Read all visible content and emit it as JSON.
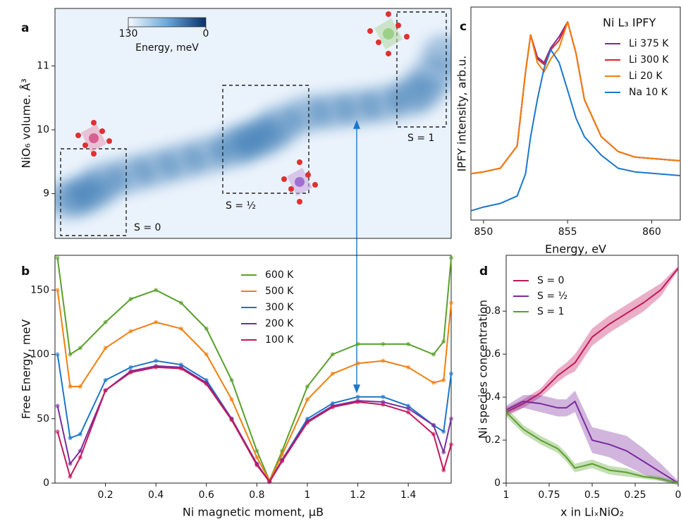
{
  "chart_data": [
    {
      "type": "density",
      "label": "a",
      "ylabel": "NiO₆ volume. Å³",
      "xlim": [
        0,
        1.57
      ],
      "ylim": [
        8.3,
        11.9
      ],
      "yticks": [
        9,
        10,
        11
      ],
      "color": "#1f66a8",
      "x": [
        0.05,
        0.1,
        0.15,
        0.2,
        0.3,
        0.4,
        0.5,
        0.6,
        0.7,
        0.75,
        0.8,
        0.85,
        0.9,
        1.0,
        1.1,
        1.2,
        1.3,
        1.4,
        1.45,
        1.5,
        1.55
      ],
      "values": [
        8.9,
        8.95,
        9.05,
        9.2,
        9.3,
        9.4,
        9.5,
        9.6,
        9.7,
        9.8,
        9.85,
        9.95,
        10.1,
        10.25,
        10.3,
        10.35,
        10.4,
        10.5,
        10.6,
        10.85,
        11.2
      ],
      "colorbar": {
        "label": "Energy, meV",
        "ticks": [
          130,
          0
        ],
        "clim": [
          130,
          0
        ]
      },
      "annotations": [
        "S = 0",
        "S = ½",
        "S = 1"
      ]
    },
    {
      "type": "line",
      "label": "b",
      "xlabel": "Ni magnetic moment, μB",
      "ylabel": "Free Energy, meV",
      "xlim": [
        0,
        1.57
      ],
      "ylim": [
        0,
        177
      ],
      "xticks": [
        0.2,
        0.4,
        0.6,
        0.8,
        1.0,
        1.2,
        1.4
      ],
      "yticks": [
        0,
        50,
        100,
        150
      ],
      "x": [
        0.01,
        0.06,
        0.1,
        0.2,
        0.3,
        0.4,
        0.5,
        0.6,
        0.7,
        0.8,
        0.85,
        0.9,
        1.0,
        1.1,
        1.2,
        1.3,
        1.4,
        1.5,
        1.54,
        1.57
      ],
      "series": [
        {
          "name": "600 K",
          "color": "#5aa02c",
          "values": [
            175,
            100,
            105,
            125,
            143,
            150,
            140,
            120,
            80,
            25,
            2,
            25,
            75,
            100,
            108,
            108,
            108,
            100,
            110,
            175
          ]
        },
        {
          "name": "500 K",
          "color": "#f07f0e",
          "values": [
            150,
            75,
            75,
            105,
            118,
            125,
            120,
            100,
            65,
            20,
            2,
            22,
            65,
            85,
            93,
            95,
            90,
            78,
            80,
            140
          ]
        },
        {
          "name": "300 K",
          "color": "#1c77c9",
          "values": [
            100,
            35,
            38,
            80,
            90,
            95,
            92,
            80,
            50,
            15,
            1,
            18,
            50,
            62,
            67,
            67,
            60,
            45,
            40,
            85
          ]
        },
        {
          "name": "200 K",
          "color": "#7b2b9e",
          "values": [
            60,
            15,
            25,
            72,
            87,
            91,
            90,
            78,
            50,
            15,
            1,
            18,
            48,
            60,
            64,
            63,
            58,
            45,
            24,
            50
          ]
        },
        {
          "name": "100 K",
          "color": "#c2185b",
          "values": [
            40,
            5,
            20,
            72,
            86,
            90,
            89,
            77,
            49,
            14,
            1,
            17,
            47,
            59,
            63,
            61,
            55,
            38,
            10,
            30
          ]
        }
      ]
    },
    {
      "type": "line",
      "label": "c",
      "xlabel": "Energy, eV",
      "ylabel": "IPFY intensity, arb.u.",
      "legend_title": "Ni L₃ IPFY",
      "xlim": [
        849.25,
        861.7
      ],
      "ylim": [
        0,
        1.15
      ],
      "xticks": [
        850,
        855,
        860
      ],
      "x": [
        849.25,
        850,
        851,
        852,
        852.5,
        852.8,
        853.2,
        853.6,
        854,
        854.5,
        855,
        855.5,
        856,
        857,
        858,
        859,
        861.7
      ],
      "series": [
        {
          "name": "Li 375 K",
          "color": "#7b2b9e",
          "values": [
            0.25,
            0.26,
            0.28,
            0.4,
            0.8,
            1.0,
            0.88,
            0.85,
            0.93,
            0.99,
            1.07,
            0.9,
            0.65,
            0.45,
            0.37,
            0.34,
            0.32
          ]
        },
        {
          "name": "Li 300 K",
          "color": "#d62728",
          "values": [
            0.25,
            0.26,
            0.28,
            0.4,
            0.8,
            1.0,
            0.87,
            0.84,
            0.92,
            0.97,
            1.07,
            0.9,
            0.65,
            0.45,
            0.37,
            0.34,
            0.32
          ]
        },
        {
          "name": "Li   20 K",
          "color": "#f07f0e",
          "values": [
            0.25,
            0.26,
            0.28,
            0.4,
            0.8,
            1.0,
            0.85,
            0.8,
            0.87,
            0.93,
            1.07,
            0.9,
            0.65,
            0.45,
            0.37,
            0.34,
            0.32
          ]
        },
        {
          "name": "Na 10 K",
          "color": "#1c77c9",
          "values": [
            0.05,
            0.07,
            0.09,
            0.13,
            0.25,
            0.45,
            0.65,
            0.82,
            0.92,
            0.85,
            0.7,
            0.55,
            0.45,
            0.35,
            0.28,
            0.26,
            0.24
          ]
        }
      ]
    },
    {
      "type": "band",
      "label": "d",
      "xlabel": "x in LiₓNiO₂",
      "ylabel": "Ni species concentration",
      "xlim": [
        1,
        0
      ],
      "ylim": [
        0,
        1.06
      ],
      "xticks": [
        1,
        0.75,
        0.5,
        0.25,
        0
      ],
      "yticks": [
        0,
        0.2,
        0.4,
        0.6,
        0.8
      ],
      "x": [
        1,
        0.9,
        0.8,
        0.7,
        0.65,
        0.6,
        0.5,
        0.4,
        0.3,
        0.2,
        0.1,
        0
      ],
      "series": [
        {
          "name": "S = 0",
          "color": "#c2185b",
          "values": [
            0.33,
            0.37,
            0.42,
            0.5,
            0.53,
            0.56,
            0.68,
            0.74,
            0.79,
            0.84,
            0.9,
            1.0
          ],
          "errors": [
            0.02,
            0.02,
            0.02,
            0.03,
            0.03,
            0.04,
            0.04,
            0.04,
            0.04,
            0.04,
            0.03,
            0.01
          ]
        },
        {
          "name": "S = ½",
          "color": "#7b2b9e",
          "values": [
            0.34,
            0.38,
            0.37,
            0.35,
            0.35,
            0.38,
            0.2,
            0.18,
            0.15,
            0.1,
            0.05,
            0.0
          ],
          "errors": [
            0.02,
            0.03,
            0.04,
            0.04,
            0.04,
            0.05,
            0.06,
            0.06,
            0.07,
            0.06,
            0.04,
            0.01
          ]
        },
        {
          "name": "S = 1",
          "color": "#5aa02c",
          "values": [
            0.33,
            0.25,
            0.2,
            0.16,
            0.12,
            0.07,
            0.09,
            0.06,
            0.05,
            0.03,
            0.02,
            0.0
          ],
          "errors": [
            0.02,
            0.02,
            0.02,
            0.02,
            0.02,
            0.02,
            0.02,
            0.02,
            0.02,
            0.01,
            0.01,
            0.005
          ]
        }
      ]
    }
  ]
}
